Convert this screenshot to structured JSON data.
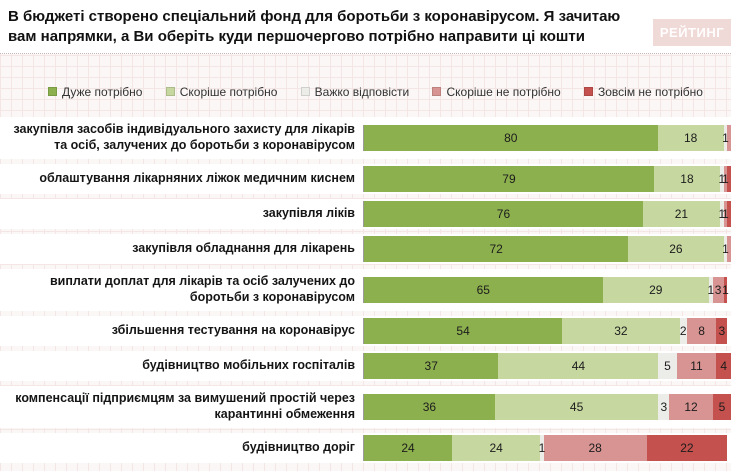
{
  "header": {
    "title": "В бюджеті створено спеціальний фонд для боротьби з коронавірусом. Я зачитаю вам напрямки, а Ви оберіть куди першочергово потрібно направити ці кошти",
    "logo_text": "РЕЙТИНГ"
  },
  "chart_data": {
    "type": "bar",
    "orientation": "horizontal-stacked",
    "units": "percent",
    "xlim": [
      0,
      100
    ],
    "legend_position": "top",
    "grid": true,
    "legend": [
      {
        "label": "Дуже потрібно",
        "color": "#8DB04E"
      },
      {
        "label": "Скоріше потрібно",
        "color": "#C6D7A0"
      },
      {
        "label": "Важко відповісти",
        "color": "#ECECE9"
      },
      {
        "label": "Скоріше не потрібно",
        "color": "#D79492"
      },
      {
        "label": "Зовсім не потрібно",
        "color": "#C4514D"
      }
    ],
    "rows": [
      {
        "category": "закупівля засобів індивідуального захисту для лікарів та осіб, залучених до боротьби з коронавірусом",
        "values": [
          80,
          18,
          1,
          1,
          0
        ],
        "value_labels": [
          "80",
          "18",
          "1",
          "",
          ""
        ]
      },
      {
        "category": "облаштування лікарняних ліжок медичним киснем",
        "values": [
          79,
          18,
          1,
          1,
          1
        ],
        "value_labels": [
          "79",
          "18",
          "1",
          "1",
          ""
        ]
      },
      {
        "category": "закупівля ліків",
        "values": [
          76,
          21,
          1,
          1,
          1
        ],
        "value_labels": [
          "76",
          "21",
          "1",
          "1",
          ""
        ]
      },
      {
        "category": "закупівля обладнання для лікарень",
        "values": [
          72,
          26,
          1,
          1,
          0
        ],
        "value_labels": [
          "72",
          "26",
          "1",
          "",
          ""
        ]
      },
      {
        "category": "виплати доплат для лікарів та осіб залучених до боротьби з коронавірусом",
        "values": [
          65,
          29,
          1,
          3,
          1
        ],
        "value_labels": [
          "65",
          "29",
          "1",
          "3",
          "1"
        ]
      },
      {
        "category": "збільшення тестування на коронавірус",
        "values": [
          54,
          32,
          2,
          8,
          3
        ],
        "value_labels": [
          "54",
          "32",
          "2",
          "8",
          "3"
        ]
      },
      {
        "category": "будівництво мобільних госпіталів",
        "values": [
          37,
          44,
          5,
          11,
          4
        ],
        "value_labels": [
          "37",
          "44",
          "5",
          "11",
          "4"
        ]
      },
      {
        "category": "компенсації підприємцям за вимушений простій через карантинні обмеження",
        "values": [
          36,
          45,
          3,
          12,
          5
        ],
        "value_labels": [
          "36",
          "45",
          "3",
          "12",
          "5"
        ]
      },
      {
        "category": "будівництво доріг",
        "values": [
          24,
          24,
          1,
          28,
          22
        ],
        "value_labels": [
          "24",
          "24",
          "1",
          "28",
          "22"
        ]
      }
    ]
  }
}
